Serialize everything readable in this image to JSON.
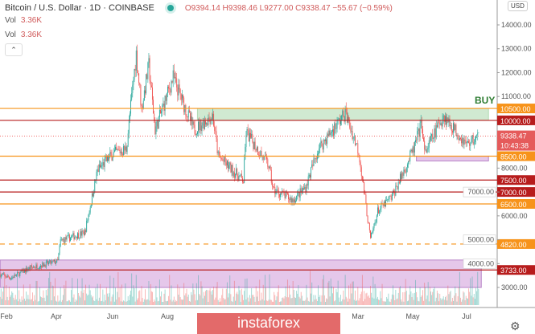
{
  "header": {
    "title": "Bitcoin / U.S. Dollar · 1D · COINBASE",
    "ohlc": "O9394.14 H9398.46 L9277.00 C9338.47 −55.67 (−0.59%)",
    "vol_label": "Vol",
    "vol_value": "3.36K"
  },
  "currency_button": "USD",
  "collapse_icon": "chevron-up-icon",
  "watermark": "instaforex",
  "buy_label": "BUY",
  "colors": {
    "up": "#26a69a",
    "down": "#ef5350",
    "orange": "#f7931a",
    "darkred": "#b71c1c",
    "green_zone": "#c8e6c9",
    "pink_zone": "#e1bee7"
  },
  "chart_data": {
    "type": "candlestick",
    "title": "Bitcoin / U.S. Dollar · 1D · COINBASE",
    "ylim": [
      2500,
      15000
    ],
    "y_ticks": [
      3000,
      4000,
      5000,
      6000,
      7000,
      8000,
      11000,
      12000,
      13000,
      14000
    ],
    "x_ticks": [
      "Feb",
      "Apr",
      "Jun",
      "Aug",
      "Mar",
      "May",
      "Jul"
    ],
    "close_path": [
      [
        "2019-01-25",
        3550
      ],
      [
        "2019-02-07",
        3400
      ],
      [
        "2019-02-28",
        3820
      ],
      [
        "2019-03-31",
        4100
      ],
      [
        "2019-04-03",
        4950
      ],
      [
        "2019-04-30",
        5300
      ],
      [
        "2019-05-14",
        7900
      ],
      [
        "2019-05-31",
        8600
      ],
      [
        "2019-06-15",
        8800
      ],
      [
        "2019-06-26",
        12800
      ],
      [
        "2019-07-02",
        10500
      ],
      [
        "2019-07-10",
        12300
      ],
      [
        "2019-07-17",
        9600
      ],
      [
        "2019-08-06",
        11800
      ],
      [
        "2019-08-29",
        9600
      ],
      [
        "2019-09-19",
        10200
      ],
      [
        "2019-09-25",
        8500
      ],
      [
        "2019-10-23",
        7450
      ],
      [
        "2019-10-26",
        9500
      ],
      [
        "2019-11-20",
        8100
      ],
      [
        "2019-11-25",
        7100
      ],
      [
        "2019-12-17",
        6650
      ],
      [
        "2019-12-31",
        7200
      ],
      [
        "2020-01-14",
        8800
      ],
      [
        "2020-02-13",
        10300
      ],
      [
        "2020-02-28",
        8700
      ],
      [
        "2020-03-12",
        5000
      ],
      [
        "2020-03-20",
        6200
      ],
      [
        "2020-04-05",
        6800
      ],
      [
        "2020-04-29",
        8800
      ],
      [
        "2020-05-08",
        9900
      ],
      [
        "2020-05-11",
        8600
      ],
      [
        "2020-06-01",
        10200
      ],
      [
        "2020-06-27",
        9000
      ],
      [
        "2020-07-10",
        9338.47
      ]
    ],
    "levels": [
      {
        "value": 10500,
        "label": "10500.00",
        "color": "orange",
        "style": "solid"
      },
      {
        "value": 10000,
        "label": "10000.00",
        "color": "darkred",
        "style": "solid"
      },
      {
        "value": 8500,
        "label": "8500.00",
        "color": "orange",
        "style": "solid"
      },
      {
        "value": 7500,
        "label": "7500.00",
        "color": "darkred",
        "style": "solid"
      },
      {
        "value": 7000,
        "label": "7000.00",
        "color": "darkred",
        "style": "solid"
      },
      {
        "value": 6500,
        "label": "6500.00",
        "color": "orange",
        "style": "solid"
      },
      {
        "value": 4820,
        "label": "4820.00",
        "color": "orange",
        "style": "dashed"
      },
      {
        "value": 3733,
        "label": "3733.00",
        "color": "darkred",
        "style": "solid"
      }
    ],
    "last_price": {
      "value": 9338.47,
      "label": "9338.47",
      "countdown": "10:43:38"
    },
    "zones": [
      {
        "name": "buy-zone",
        "from": 10000,
        "to": 10500,
        "start": "2019-09-01",
        "end": "2020-07-20",
        "color": "green_zone"
      },
      {
        "name": "support-zone-small",
        "from": 8300,
        "to": 8500,
        "start": "2020-05-01",
        "end": "2020-07-20",
        "color": "pink_zone"
      },
      {
        "name": "support-zone-large",
        "from": 3000,
        "to": 4150,
        "start": "2019-01-25",
        "end": "2020-07-12",
        "color": "pink_zone"
      }
    ]
  }
}
